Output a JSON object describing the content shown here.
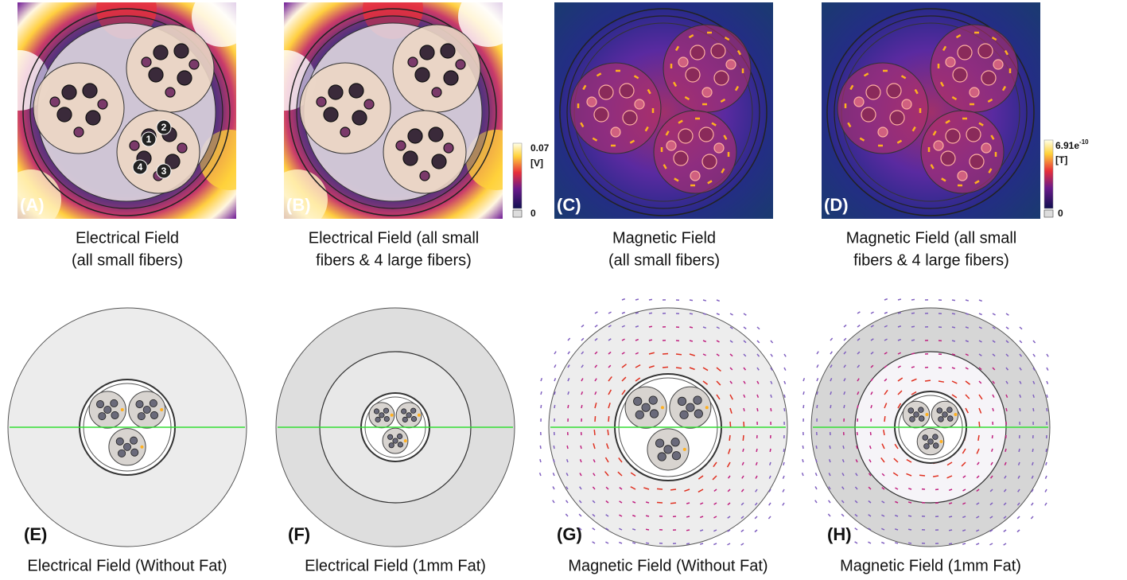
{
  "panels": [
    {
      "label": "(A)",
      "caption": [
        "Electrical Field",
        "(all small fibers)"
      ]
    },
    {
      "label": "(B)",
      "caption": [
        "Electrical Field (all small",
        "fibers & 4 large fibers)"
      ]
    },
    {
      "label": "(C)",
      "caption": [
        "Magnetic Field",
        "(all small fibers)"
      ]
    },
    {
      "label": "(D)",
      "caption": [
        "Magnetic Field (all small",
        "fibers & 4 large fibers)"
      ]
    },
    {
      "label": "(E)",
      "caption": [
        "Electrical Field (Without Fat)"
      ]
    },
    {
      "label": "(F)",
      "caption": [
        "Electrical Field (1mm  Fat)"
      ]
    },
    {
      "label": "(G)",
      "caption": [
        "Magnetic Field (Without Fat)"
      ]
    },
    {
      "label": "(H)",
      "caption": [
        "Magnetic Field (1mm  Fat)"
      ]
    }
  ],
  "colorbars": [
    {
      "max": "0.07",
      "unit": "[V]",
      "min": "0"
    },
    {
      "max": "6.91e",
      "max_exponent": "-10",
      "unit": "[T]",
      "min": "0"
    }
  ],
  "fiber_numbers": [
    "1",
    "2",
    "3",
    "4"
  ]
}
